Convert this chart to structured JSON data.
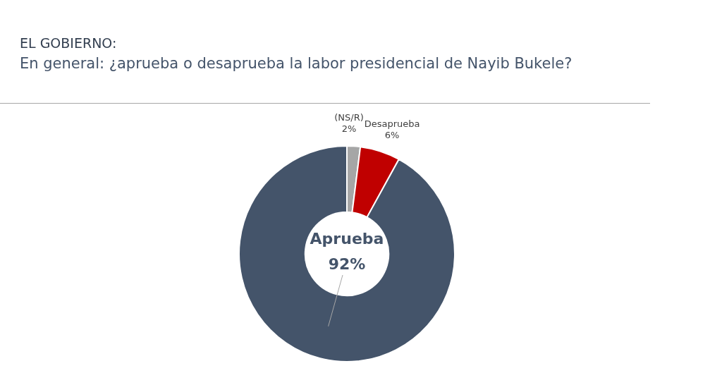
{
  "chart_data": {
    "type": "donut",
    "title": "EL GOBIERNO:",
    "subtitle": "En general: ¿aprueba o desaprueba la labor presidencial de Nayib Bukele?",
    "categories": [
      "(NS/R)",
      "Desaprueba",
      "Aprueba"
    ],
    "values": [
      2,
      6,
      92
    ],
    "colors": [
      "#a6a6a6",
      "#c00000",
      "#44546a"
    ],
    "value_labels": [
      "2%",
      "6%",
      "92%"
    ],
    "legend": false
  }
}
